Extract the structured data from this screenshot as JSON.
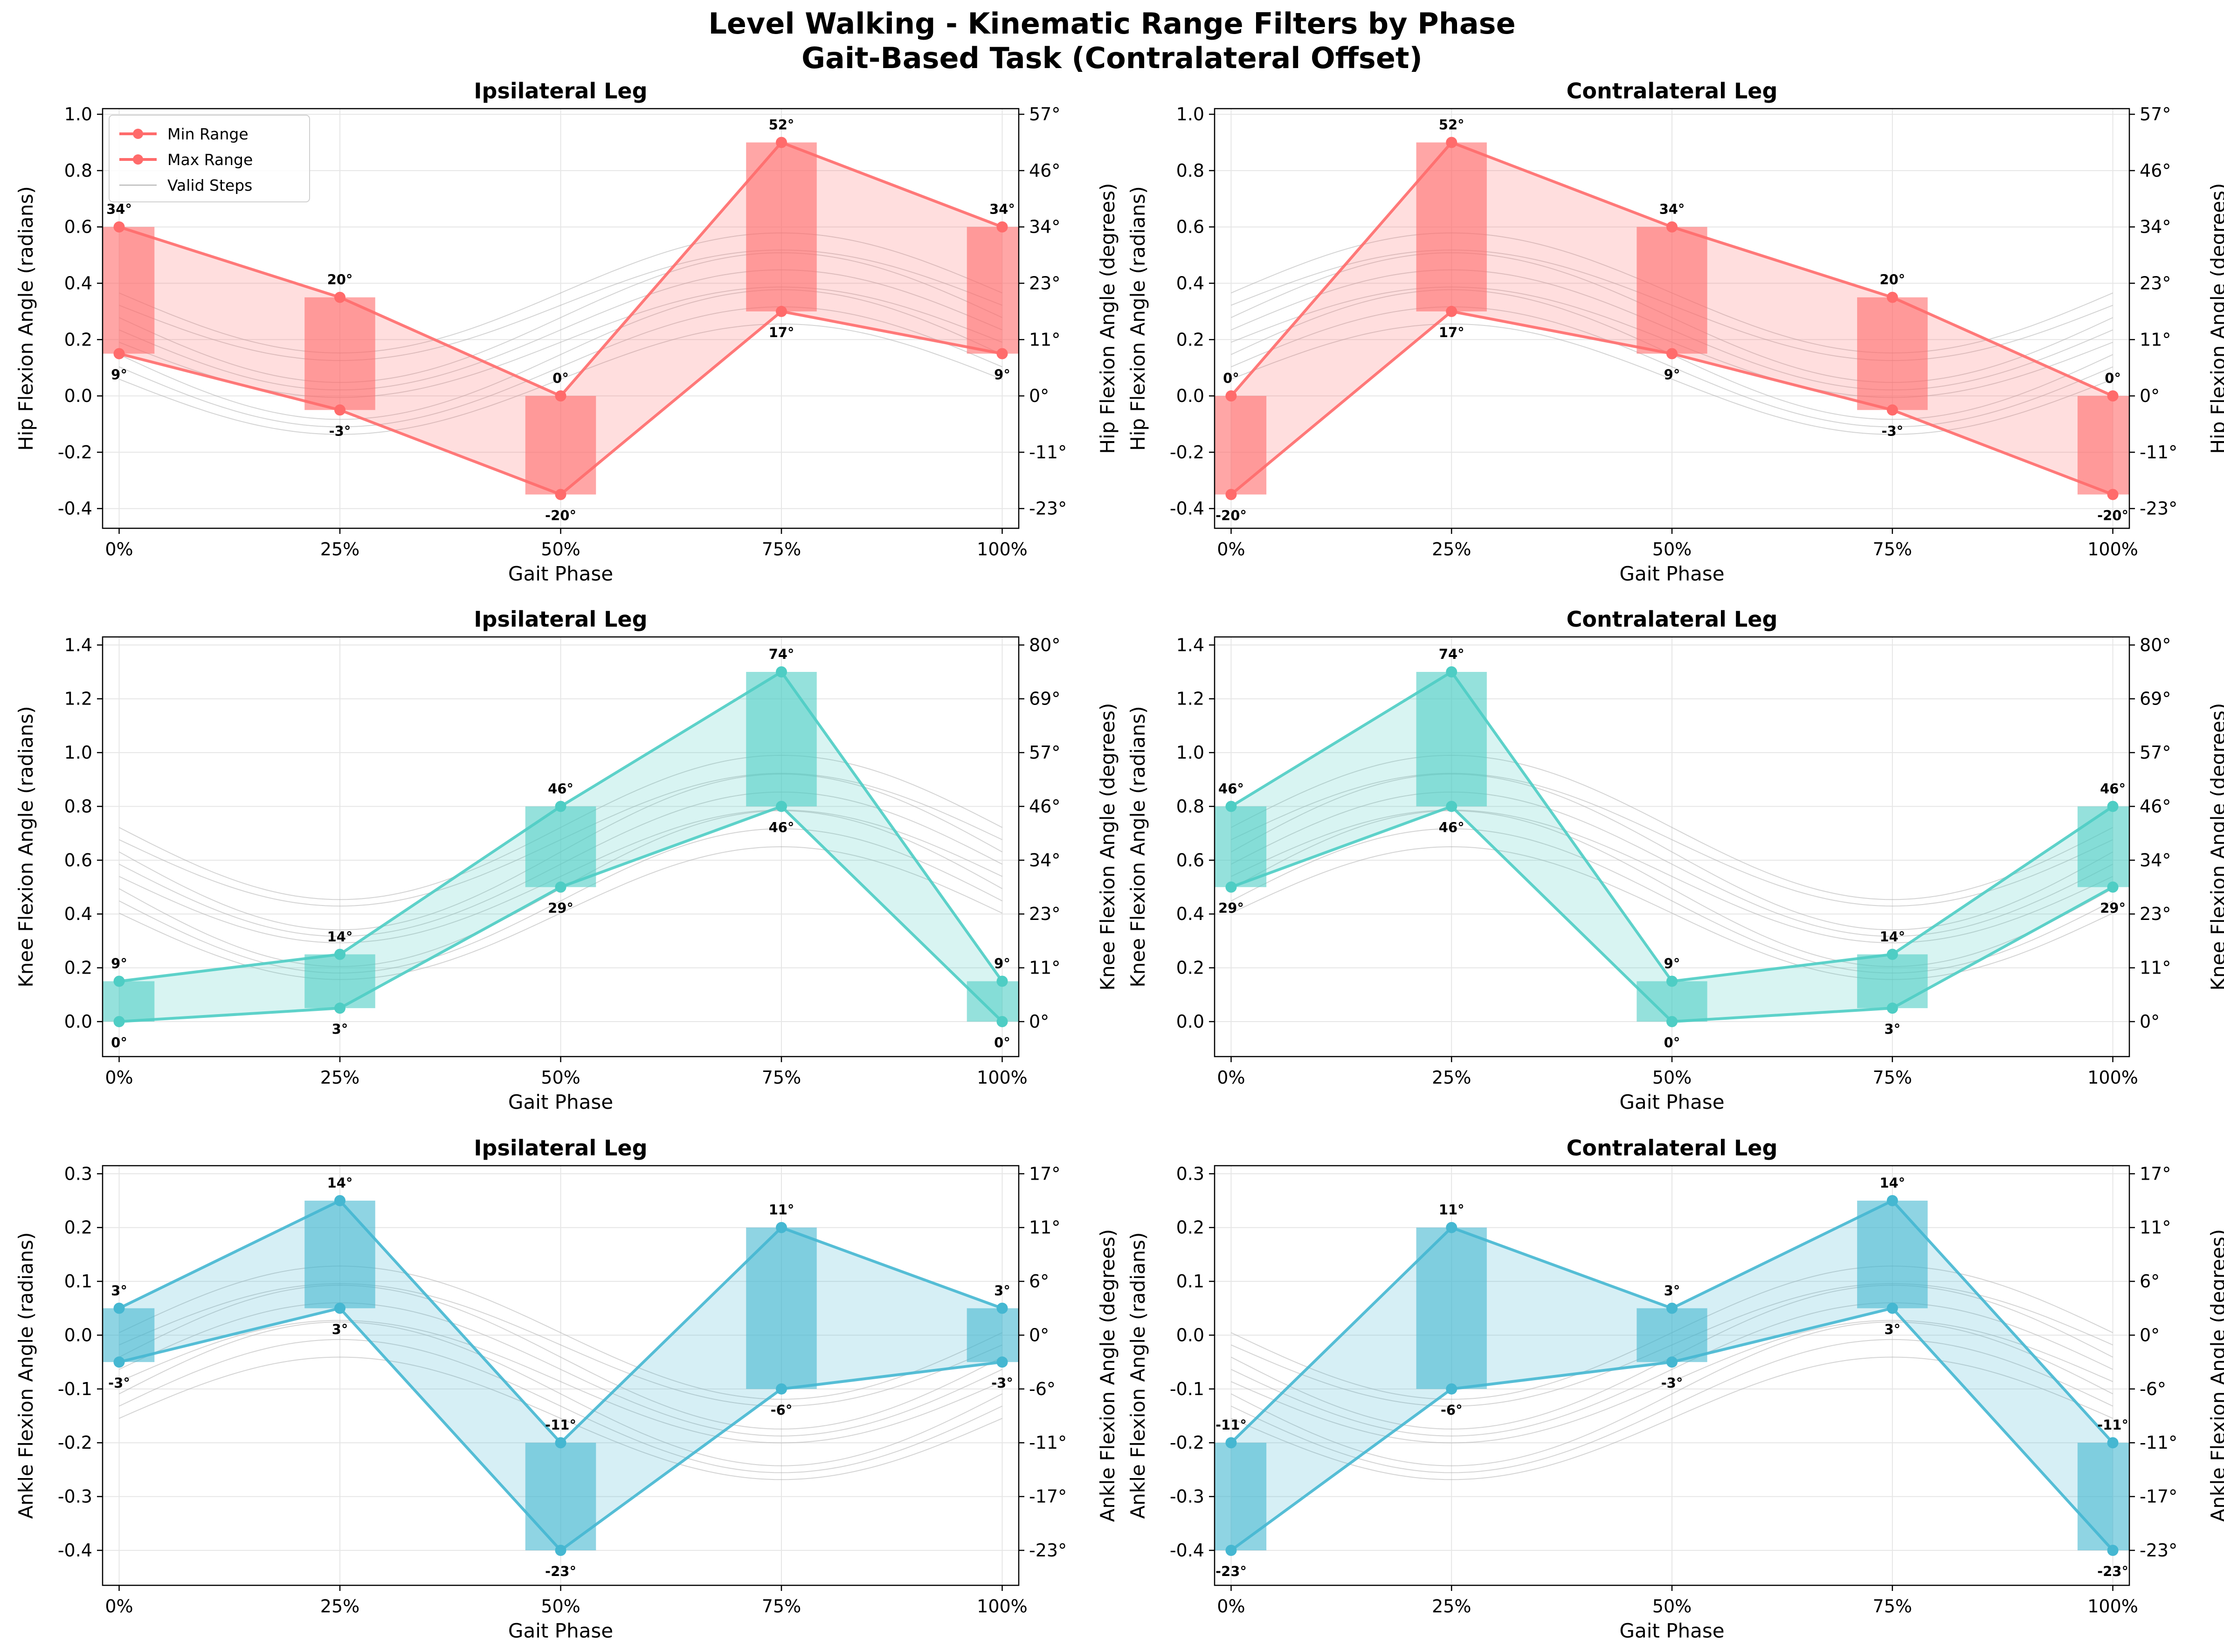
{
  "figure": {
    "title_line1": "Level Walking - Kinematic Range Filters by Phase",
    "title_line2": "Gait-Based Task (Contralateral Offset)"
  },
  "legend": {
    "min_label": "Min Range",
    "max_label": "Max Range",
    "valid_label": "Valid Steps"
  },
  "colors": {
    "hip": "#FF6B6B",
    "knee": "#4ECDC4",
    "ankle": "#45B7D1",
    "valid_steps": "#B0B0B0"
  },
  "chart_data": [
    {
      "type": "line",
      "title": "Ipsilateral Leg",
      "joint": "hip",
      "xlabel": "Gait Phase",
      "ylabel": "Hip Flexion Angle (radians)",
      "ylabel_right": "Hip Flexion Angle (degrees)",
      "categories": [
        "0%",
        "25%",
        "50%",
        "75%",
        "100%"
      ],
      "series": [
        {
          "name": "Min Range",
          "values": [
            0.15,
            -0.05,
            -0.35,
            0.3,
            0.15
          ]
        },
        {
          "name": "Max Range",
          "values": [
            0.6,
            0.35,
            0.0,
            0.9,
            0.6
          ]
        }
      ],
      "min_labels": [
        "9°",
        "-3°",
        "-20°",
        "17°",
        "9°"
      ],
      "max_labels": [
        "34°",
        "20°",
        "0°",
        "52°",
        "34°"
      ],
      "ylim": [
        -0.47,
        1.02
      ],
      "yticks": [
        -0.4,
        -0.2,
        0.0,
        0.2,
        0.4,
        0.6,
        0.8,
        1.0
      ],
      "ytick_labels": [
        "-0.4",
        "-0.2",
        "0.0",
        "0.2",
        "0.4",
        "0.6",
        "0.8",
        "1.0"
      ],
      "deg_ticks": [
        "-23°",
        "-11°",
        "0°",
        "11°",
        "23°",
        "34°",
        "46°",
        "57°"
      ],
      "legend": true,
      "grid": true,
      "legend_position": "upper-left"
    },
    {
      "type": "line",
      "title": "Contralateral Leg",
      "joint": "hip",
      "xlabel": "Gait Phase",
      "ylabel": "Hip Flexion Angle (radians)",
      "ylabel_right": "Hip Flexion Angle (degrees)",
      "categories": [
        "0%",
        "25%",
        "50%",
        "75%",
        "100%"
      ],
      "series": [
        {
          "name": "Min Range",
          "values": [
            -0.35,
            0.3,
            0.15,
            -0.05,
            -0.35
          ]
        },
        {
          "name": "Max Range",
          "values": [
            0.0,
            0.9,
            0.6,
            0.35,
            0.0
          ]
        }
      ],
      "min_labels": [
        "-20°",
        "17°",
        "9°",
        "-3°",
        "-20°"
      ],
      "max_labels": [
        "0°",
        "52°",
        "34°",
        "20°",
        "0°"
      ],
      "ylim": [
        -0.47,
        1.02
      ],
      "yticks": [
        -0.4,
        -0.2,
        0.0,
        0.2,
        0.4,
        0.6,
        0.8,
        1.0
      ],
      "ytick_labels": [
        "-0.4",
        "-0.2",
        "0.0",
        "0.2",
        "0.4",
        "0.6",
        "0.8",
        "1.0"
      ],
      "deg_ticks": [
        "-23°",
        "-11°",
        "0°",
        "11°",
        "23°",
        "34°",
        "46°",
        "57°"
      ],
      "legend": false,
      "grid": true
    },
    {
      "type": "line",
      "title": "Ipsilateral Leg",
      "joint": "knee",
      "xlabel": "Gait Phase",
      "ylabel": "Knee Flexion Angle (radians)",
      "ylabel_right": "Knee Flexion Angle (degrees)",
      "categories": [
        "0%",
        "25%",
        "50%",
        "75%",
        "100%"
      ],
      "series": [
        {
          "name": "Min Range",
          "values": [
            0.0,
            0.05,
            0.5,
            0.8,
            0.0
          ]
        },
        {
          "name": "Max Range",
          "values": [
            0.15,
            0.25,
            0.8,
            1.3,
            0.15
          ]
        }
      ],
      "min_labels": [
        "0°",
        "3°",
        "29°",
        "46°",
        "0°"
      ],
      "max_labels": [
        "9°",
        "14°",
        "46°",
        "74°",
        "9°"
      ],
      "ylim": [
        -0.13,
        1.43
      ],
      "yticks": [
        0.0,
        0.2,
        0.4,
        0.6,
        0.8,
        1.0,
        1.2,
        1.4
      ],
      "ytick_labels": [
        "0.0",
        "0.2",
        "0.4",
        "0.6",
        "0.8",
        "1.0",
        "1.2",
        "1.4"
      ],
      "deg_ticks": [
        "0°",
        "11°",
        "23°",
        "34°",
        "46°",
        "57°",
        "69°",
        "80°"
      ],
      "legend": false,
      "grid": true
    },
    {
      "type": "line",
      "title": "Contralateral Leg",
      "joint": "knee",
      "xlabel": "Gait Phase",
      "ylabel": "Knee Flexion Angle (radians)",
      "ylabel_right": "Knee Flexion Angle (degrees)",
      "categories": [
        "0%",
        "25%",
        "50%",
        "75%",
        "100%"
      ],
      "series": [
        {
          "name": "Min Range",
          "values": [
            0.5,
            0.8,
            0.0,
            0.05,
            0.5
          ]
        },
        {
          "name": "Max Range",
          "values": [
            0.8,
            1.3,
            0.15,
            0.25,
            0.8
          ]
        }
      ],
      "min_labels": [
        "29°",
        "46°",
        "0°",
        "3°",
        "29°"
      ],
      "max_labels": [
        "46°",
        "74°",
        "9°",
        "14°",
        "46°"
      ],
      "ylim": [
        -0.13,
        1.43
      ],
      "yticks": [
        0.0,
        0.2,
        0.4,
        0.6,
        0.8,
        1.0,
        1.2,
        1.4
      ],
      "ytick_labels": [
        "0.0",
        "0.2",
        "0.4",
        "0.6",
        "0.8",
        "1.0",
        "1.2",
        "1.4"
      ],
      "deg_ticks": [
        "0°",
        "11°",
        "23°",
        "34°",
        "46°",
        "57°",
        "69°",
        "80°"
      ],
      "legend": false,
      "grid": true
    },
    {
      "type": "line",
      "title": "Ipsilateral Leg",
      "joint": "ankle",
      "xlabel": "Gait Phase",
      "ylabel": "Ankle Flexion Angle (radians)",
      "ylabel_right": "Ankle Flexion Angle (degrees)",
      "categories": [
        "0%",
        "25%",
        "50%",
        "75%",
        "100%"
      ],
      "series": [
        {
          "name": "Min Range",
          "values": [
            -0.05,
            0.05,
            -0.4,
            -0.1,
            -0.05
          ]
        },
        {
          "name": "Max Range",
          "values": [
            0.05,
            0.25,
            -0.2,
            0.2,
            0.05
          ]
        }
      ],
      "min_labels": [
        "-3°",
        "3°",
        "-23°",
        "-6°",
        "-3°"
      ],
      "max_labels": [
        "3°",
        "14°",
        "-11°",
        "11°",
        "3°"
      ],
      "ylim": [
        -0.465,
        0.315
      ],
      "yticks": [
        -0.4,
        -0.3,
        -0.2,
        -0.1,
        0.0,
        0.1,
        0.2,
        0.3
      ],
      "ytick_labels": [
        "-0.4",
        "-0.3",
        "-0.2",
        "-0.1",
        "0.0",
        "0.1",
        "0.2",
        "0.3"
      ],
      "deg_ticks": [
        "-23°",
        "-17°",
        "-11°",
        "-6°",
        "0°",
        "6°",
        "11°",
        "17°"
      ],
      "legend": false,
      "grid": true
    },
    {
      "type": "line",
      "title": "Contralateral Leg",
      "joint": "ankle",
      "xlabel": "Gait Phase",
      "ylabel": "Ankle Flexion Angle (radians)",
      "ylabel_right": "Ankle Flexion Angle (degrees)",
      "categories": [
        "0%",
        "25%",
        "50%",
        "75%",
        "100%"
      ],
      "series": [
        {
          "name": "Min Range",
          "values": [
            -0.4,
            -0.1,
            -0.05,
            0.05,
            -0.4
          ]
        },
        {
          "name": "Max Range",
          "values": [
            -0.2,
            0.2,
            0.05,
            0.25,
            -0.2
          ]
        }
      ],
      "min_labels": [
        "-23°",
        "-6°",
        "-3°",
        "3°",
        "-23°"
      ],
      "max_labels": [
        "-11°",
        "11°",
        "3°",
        "14°",
        "-11°"
      ],
      "ylim": [
        -0.465,
        0.315
      ],
      "yticks": [
        -0.4,
        -0.3,
        -0.2,
        -0.1,
        0.0,
        0.1,
        0.2,
        0.3
      ],
      "ytick_labels": [
        "-0.4",
        "-0.3",
        "-0.2",
        "-0.1",
        "0.0",
        "0.1",
        "0.2",
        "0.3"
      ],
      "deg_ticks": [
        "-23°",
        "-17°",
        "-11°",
        "-6°",
        "0°",
        "6°",
        "11°",
        "17°"
      ],
      "legend": false,
      "grid": true
    }
  ]
}
